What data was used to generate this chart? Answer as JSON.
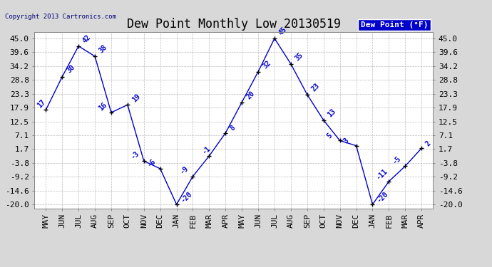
{
  "title": "Dew Point Monthly Low 20130519",
  "copyright": "Copyright 2013 Cartronics.com",
  "legend_label": "Dew Point (°F)",
  "x_labels": [
    "MAY",
    "JUN",
    "JUL",
    "AUG",
    "SEP",
    "OCT",
    "NOV",
    "DEC",
    "JAN",
    "FEB",
    "MAR",
    "APR",
    "MAY",
    "JUN",
    "JUL",
    "AUG",
    "SEP",
    "OCT",
    "NOV",
    "DEC",
    "JAN",
    "FEB",
    "MAR",
    "APR"
  ],
  "y_values": [
    17,
    30,
    42,
    38,
    16,
    19,
    -3,
    -6,
    -20,
    -9,
    -1,
    8,
    20,
    32,
    45,
    35,
    23,
    13,
    5,
    3,
    -20,
    -11,
    -5,
    2
  ],
  "y_ticks": [
    -20.0,
    -14.6,
    -9.2,
    -3.8,
    1.7,
    7.1,
    12.5,
    17.9,
    23.3,
    28.8,
    34.2,
    39.6,
    45.0
  ],
  "ylim": [
    -21.5,
    47.5
  ],
  "line_color": "#0000cc",
  "marker_color": "#000000",
  "bg_color": "#d8d8d8",
  "plot_bg_color": "#ffffff",
  "grid_color": "#aaaaaa",
  "title_fontsize": 12,
  "tick_fontsize": 8,
  "anno_fontsize": 7
}
